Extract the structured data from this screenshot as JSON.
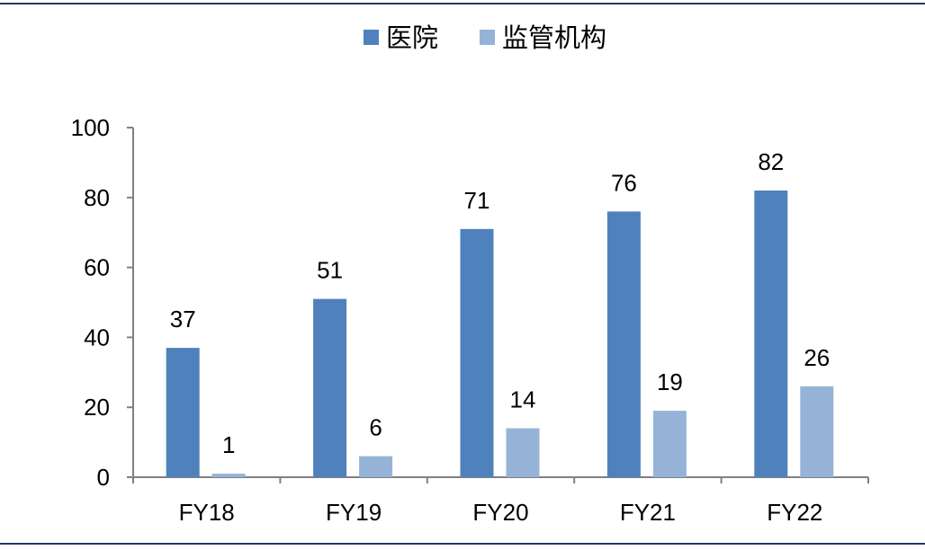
{
  "chart_data": {
    "type": "bar",
    "categories": [
      "FY18",
      "FY19",
      "FY20",
      "FY21",
      "FY22"
    ],
    "series": [
      {
        "name": "医院",
        "color": "#4f81bd",
        "values": [
          37,
          51,
          71,
          76,
          82
        ]
      },
      {
        "name": "监管机构",
        "color": "#95b3d7",
        "values": [
          1,
          6,
          14,
          19,
          26
        ]
      }
    ],
    "ylim": [
      0,
      100
    ],
    "yticks": [
      0,
      20,
      40,
      60,
      80,
      100
    ],
    "grid": false,
    "legend": "top-center",
    "title": "",
    "xlabel": "",
    "ylabel": ""
  },
  "colors": {
    "frame": "#1f3864",
    "axis": "#808080"
  }
}
